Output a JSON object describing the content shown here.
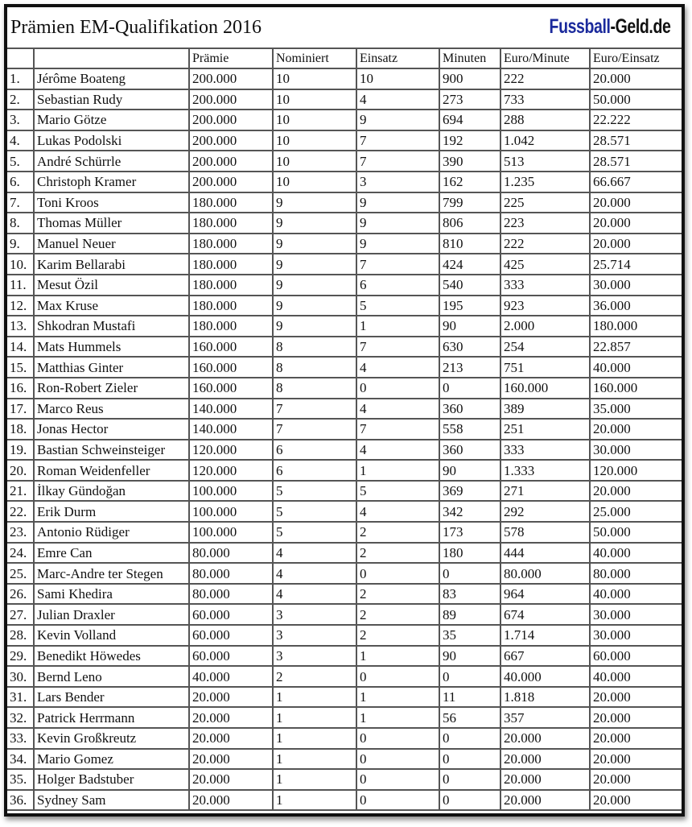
{
  "title": "Prämien EM-Qualifikation 2016",
  "logo": {
    "part1": "Fussball",
    "part2": "-Geld.de",
    "color1": "#1b2a9c",
    "color2": "#111111"
  },
  "columns": [
    "",
    "",
    "Prämie",
    "Nominiert",
    "Einsatz",
    "Minuten",
    "Euro/Minute",
    "Euro/Einsatz"
  ],
  "rows": [
    [
      "1.",
      "Jérôme Boateng",
      "200.000",
      "10",
      "10",
      "900",
      "222",
      "20.000"
    ],
    [
      "2.",
      "Sebastian Rudy",
      "200.000",
      "10",
      "4",
      "273",
      "733",
      "50.000"
    ],
    [
      "3.",
      "Mario Götze",
      "200.000",
      "10",
      "9",
      "694",
      "288",
      "22.222"
    ],
    [
      "4.",
      "Lukas Podolski",
      "200.000",
      "10",
      "7",
      "192",
      "1.042",
      "28.571"
    ],
    [
      "5.",
      "André Schürrle",
      "200.000",
      "10",
      "7",
      "390",
      "513",
      "28.571"
    ],
    [
      "6.",
      "Christoph Kramer",
      "200.000",
      "10",
      "3",
      "162",
      "1.235",
      "66.667"
    ],
    [
      "7.",
      "Toni Kroos",
      "180.000",
      "9",
      "9",
      "799",
      "225",
      "20.000"
    ],
    [
      "8.",
      "Thomas Müller",
      "180.000",
      "9",
      "9",
      "806",
      "223",
      "20.000"
    ],
    [
      "9.",
      "Manuel Neuer",
      "180.000",
      "9",
      "9",
      "810",
      "222",
      "20.000"
    ],
    [
      "10.",
      "Karim Bellarabi",
      "180.000",
      "9",
      "7",
      "424",
      "425",
      "25.714"
    ],
    [
      "11.",
      "Mesut Özil",
      "180.000",
      "9",
      "6",
      "540",
      "333",
      "30.000"
    ],
    [
      "12.",
      "Max Kruse",
      "180.000",
      "9",
      "5",
      "195",
      "923",
      "36.000"
    ],
    [
      "13.",
      "Shkodran Mustafi",
      "180.000",
      "9",
      "1",
      "90",
      "2.000",
      "180.000"
    ],
    [
      "14.",
      "Mats Hummels",
      "160.000",
      "8",
      "7",
      "630",
      "254",
      "22.857"
    ],
    [
      "15.",
      "Matthias Ginter",
      "160.000",
      "8",
      "4",
      "213",
      "751",
      "40.000"
    ],
    [
      "16.",
      "Ron-Robert Zieler",
      "160.000",
      "8",
      "0",
      "0",
      "160.000",
      "160.000"
    ],
    [
      "17.",
      "Marco Reus",
      "140.000",
      "7",
      "4",
      "360",
      "389",
      "35.000"
    ],
    [
      "18.",
      "Jonas Hector",
      "140.000",
      "7",
      "7",
      "558",
      "251",
      "20.000"
    ],
    [
      "19.",
      "Bastian Schweinsteiger",
      "120.000",
      "6",
      "4",
      "360",
      "333",
      "30.000"
    ],
    [
      "20.",
      "Roman Weidenfeller",
      "120.000",
      "6",
      "1",
      "90",
      "1.333",
      "120.000"
    ],
    [
      "21.",
      "İlkay Gündoğan",
      "100.000",
      "5",
      "5",
      "369",
      "271",
      "20.000"
    ],
    [
      "22.",
      "Erik Durm",
      "100.000",
      "5",
      "4",
      "342",
      "292",
      "25.000"
    ],
    [
      "23.",
      "Antonio Rüdiger",
      "100.000",
      "5",
      "2",
      "173",
      "578",
      "50.000"
    ],
    [
      "24.",
      "Emre Can",
      "80.000",
      "4",
      "2",
      "180",
      "444",
      "40.000"
    ],
    [
      "25.",
      "Marc-Andre ter Stegen",
      "80.000",
      "4",
      "0",
      "0",
      "80.000",
      "80.000"
    ],
    [
      "26.",
      "Sami Khedira",
      "80.000",
      "4",
      "2",
      "83",
      "964",
      "40.000"
    ],
    [
      "27.",
      "Julian Draxler",
      "60.000",
      "3",
      "2",
      "89",
      "674",
      "30.000"
    ],
    [
      "28.",
      "Kevin Volland",
      "60.000",
      "3",
      "2",
      "35",
      "1.714",
      "30.000"
    ],
    [
      "29.",
      "Benedikt Höwedes",
      "60.000",
      "3",
      "1",
      "90",
      "667",
      "60.000"
    ],
    [
      "30.",
      "Bernd Leno",
      "40.000",
      "2",
      "0",
      "0",
      "40.000",
      "40.000"
    ],
    [
      "31.",
      "Lars Bender",
      "20.000",
      "1",
      "1",
      "11",
      "1.818",
      "20.000"
    ],
    [
      "32.",
      "Patrick Herrmann",
      "20.000",
      "1",
      "1",
      "56",
      "357",
      "20.000"
    ],
    [
      "33.",
      "Kevin Großkreutz",
      "20.000",
      "1",
      "0",
      "0",
      "20.000",
      "20.000"
    ],
    [
      "34.",
      "Mario Gomez",
      "20.000",
      "1",
      "0",
      "0",
      "20.000",
      "20.000"
    ],
    [
      "35.",
      "Holger Badstuber",
      "20.000",
      "1",
      "0",
      "0",
      "20.000",
      "20.000"
    ],
    [
      "36.",
      "Sydney Sam",
      "20.000",
      "1",
      "0",
      "0",
      "20.000",
      "20.000"
    ]
  ]
}
